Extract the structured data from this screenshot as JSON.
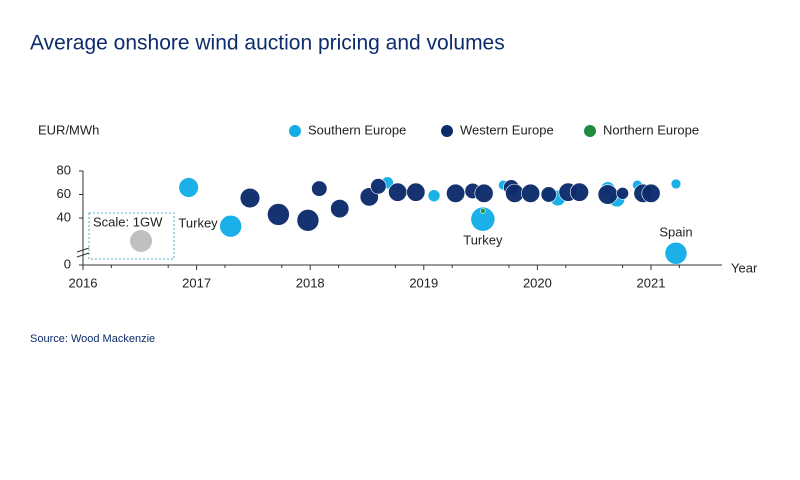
{
  "chart_data": {
    "type": "bubble",
    "title": "Average onshore wind auction pricing and volumes",
    "y_label": "EUR/MWh",
    "x_label": "Year",
    "source": "Source: Wood Mackenzie",
    "scale_label": "Scale: 1GW",
    "scale_size": 1,
    "scale_color": "#c0c0c0",
    "xlim": [
      2016,
      2021.6
    ],
    "xticks": [
      2016,
      2017,
      2018,
      2019,
      2020,
      2021
    ],
    "ylim": [
      0,
      85
    ],
    "yticks": [
      0,
      40,
      60,
      80
    ],
    "series": [
      {
        "name": "Southern Europe",
        "color": "#14ade6",
        "x": [
          2016.93,
          2017.3,
          2018.68,
          2019.09,
          2019.52,
          2019.7,
          2020.1,
          2020.18,
          2020.62,
          2020.7,
          2020.88,
          2021.22,
          2021.22
        ],
        "values": [
          66,
          33,
          70,
          59,
          39,
          68,
          59,
          57,
          65,
          56,
          68,
          69,
          10
        ],
        "sizes": [
          0.8,
          1.0,
          0.3,
          0.3,
          1.2,
          0.2,
          0.4,
          0.5,
          0.4,
          0.5,
          0.2,
          0.2,
          1.0
        ],
        "labels": [
          null,
          "Turkey",
          null,
          null,
          "Turkey",
          null,
          null,
          null,
          null,
          null,
          null,
          null,
          "Spain"
        ]
      },
      {
        "name": "Western Europe",
        "color": "#0d2c6c",
        "x": [
          2017.47,
          2017.72,
          2017.98,
          2018.08,
          2018.26,
          2018.52,
          2018.6,
          2018.77,
          2018.93,
          2019.28,
          2019.43,
          2019.53,
          2019.77,
          2019.8,
          2019.94,
          2020.1,
          2020.27,
          2020.37,
          2020.62,
          2020.75,
          2020.93,
          2021.0
        ],
        "values": [
          57,
          43,
          38,
          65,
          48,
          58,
          67,
          62,
          62,
          61,
          63,
          61,
          66,
          61,
          61,
          60,
          62,
          62,
          60,
          61,
          61,
          61
        ],
        "sizes": [
          0.8,
          1.0,
          1.0,
          0.5,
          0.7,
          0.7,
          0.5,
          0.7,
          0.7,
          0.7,
          0.5,
          0.7,
          0.5,
          0.7,
          0.7,
          0.5,
          0.7,
          0.7,
          0.8,
          0.3,
          0.7,
          0.7
        ]
      },
      {
        "name": "Northern Europe",
        "color": "#1e8c3c",
        "x": [
          2019.52
        ],
        "values": [
          46
        ],
        "sizes": [
          0.05
        ]
      }
    ]
  }
}
